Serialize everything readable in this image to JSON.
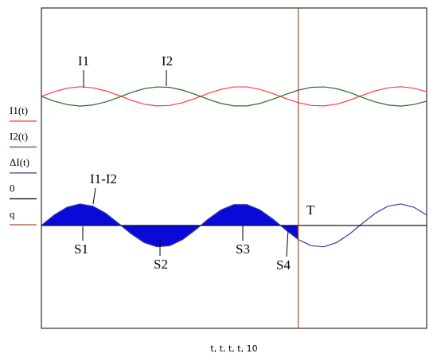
{
  "chart_data": {
    "type": "line",
    "x_label": "t, t, t, t, 10",
    "x": [
      0,
      0.5,
      1,
      1.5,
      2,
      2.5,
      3,
      3.5,
      4,
      4.5,
      5,
      5.5,
      6,
      6.5,
      7,
      7.5,
      8,
      8.5,
      9,
      9.5,
      10,
      10.5,
      11,
      11.5,
      12,
      12.5,
      13,
      13.5,
      14,
      14.5,
      15
    ],
    "xlim": [
      0,
      15
    ],
    "ylim": [
      -4.78,
      10.11
    ],
    "series": [
      {
        "name": "I1(t)",
        "color": "#ff3b3b",
        "values": [
          6,
          6.22,
          6.38,
          6.45,
          6.4,
          6.26,
          6.05,
          5.82,
          5.64,
          5.56,
          5.58,
          5.71,
          5.91,
          6.14,
          6.33,
          6.44,
          6.44,
          6.33,
          6.14,
          5.91,
          5.71,
          5.58,
          5.56,
          5.64,
          5.82,
          6.05,
          6.26,
          6.4,
          6.45,
          6.38,
          6.22
        ]
      },
      {
        "name": "I2(t)",
        "color": "#2a6a2a",
        "values": [
          6,
          5.78,
          5.62,
          5.55,
          5.6,
          5.74,
          5.95,
          6.18,
          6.36,
          6.44,
          6.42,
          6.29,
          6.09,
          5.86,
          5.67,
          5.56,
          5.56,
          5.67,
          5.86,
          6.09,
          6.29,
          6.42,
          6.44,
          6.36,
          6.18,
          5.95,
          5.74,
          5.6,
          5.55,
          5.62,
          5.78
        ]
      },
      {
        "name": "ΔI(t)",
        "color": "#3a3aa8",
        "fill_color": "#0a0ad8",
        "fill_to_x": 10,
        "values": [
          0,
          0.49,
          0.85,
          1,
          0.9,
          0.57,
          0.1,
          -0.39,
          -0.79,
          -0.99,
          -0.94,
          -0.65,
          -0.2,
          0.3,
          0.73,
          0.97,
          0.97,
          0.73,
          0.31,
          -0.19,
          -0.65,
          -0.94,
          -0.99,
          -0.79,
          -0.39,
          0.1,
          0.57,
          0.9,
          1,
          0.85,
          0.49
        ]
      },
      {
        "name": "0",
        "color": "#000000",
        "level": 0
      },
      {
        "name": "q",
        "color": "#a0522d",
        "x_position": 10
      }
    ],
    "annotations": [
      "I1",
      "I2",
      "I1-I2",
      "S1",
      "S2",
      "S3",
      "S4",
      "T"
    ]
  }
}
